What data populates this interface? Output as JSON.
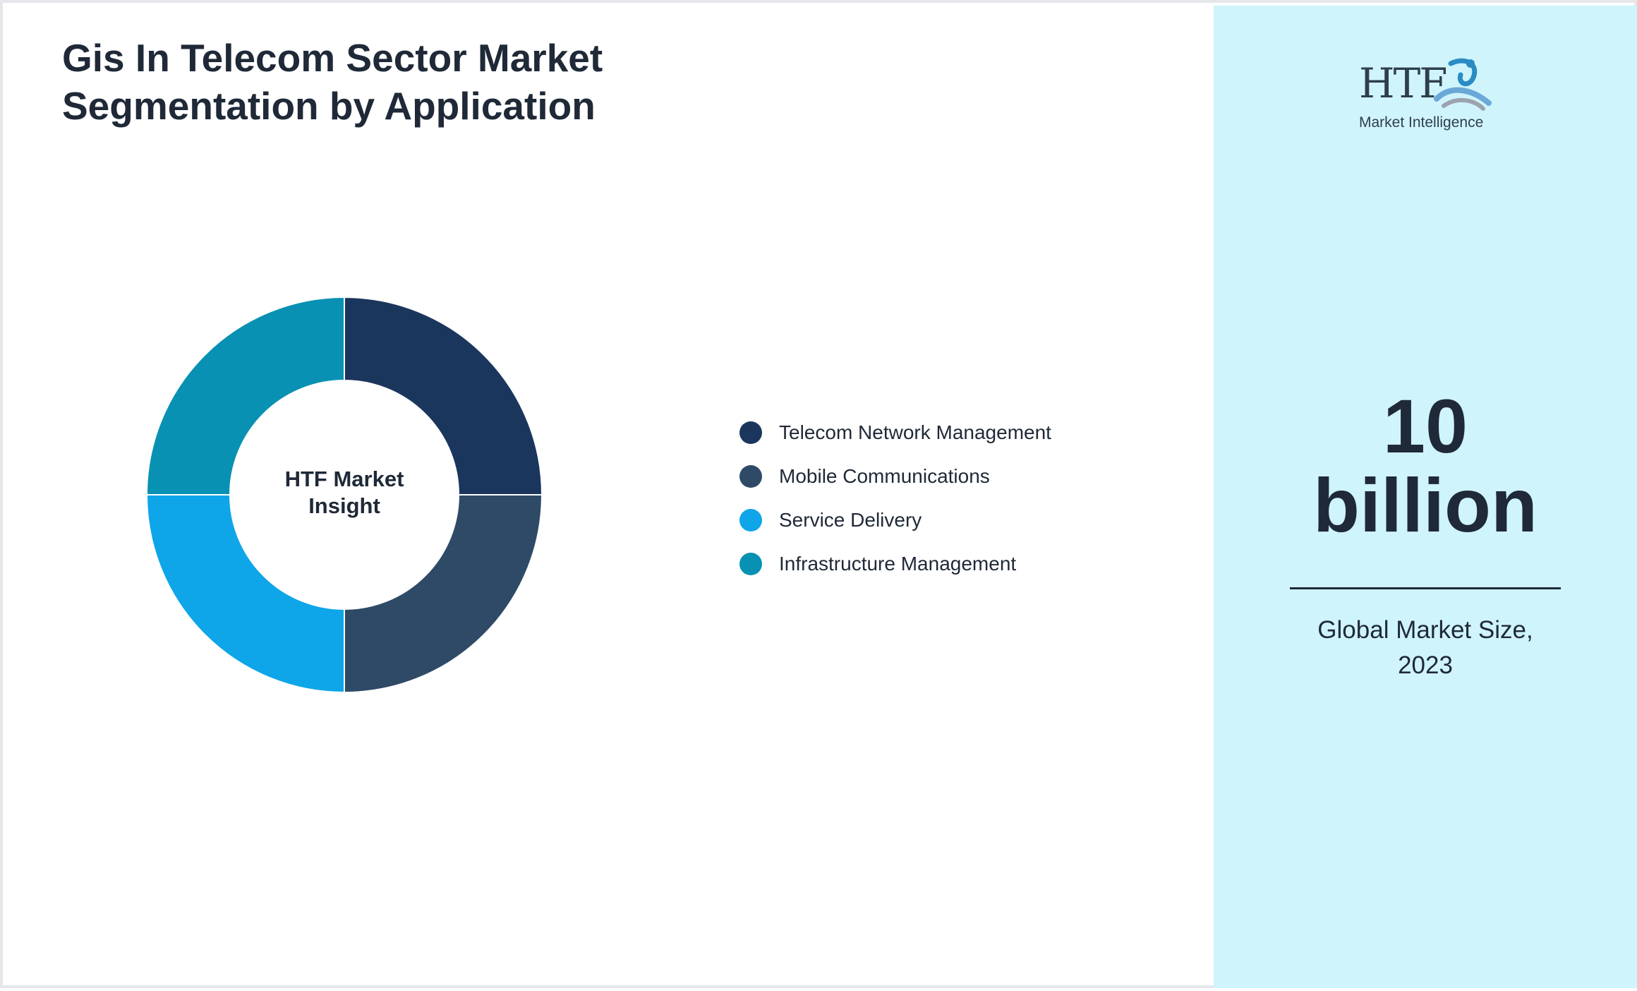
{
  "title": {
    "line1": "Gis In Telecom Sector Market",
    "line2": "Segmentation by Application"
  },
  "chart_data": {
    "type": "pie",
    "style": "donut",
    "title": "Gis In Telecom Sector Market Segmentation by Application",
    "center_label": [
      "HTF Market",
      "Insight"
    ],
    "categories": [
      "Telecom Network Management",
      "Mobile Communications",
      "Service Delivery",
      "Infrastructure Management"
    ],
    "values": [
      25,
      25,
      25,
      25
    ],
    "colors": [
      "#1b365d",
      "#2e4a67",
      "#0ea5e9",
      "#0891b2"
    ],
    "legend_position": "right"
  },
  "side_panel": {
    "logo": {
      "text": "HTF",
      "subtitle": "Market Intelligence"
    },
    "market_value": {
      "line1": "10",
      "line2": "billion"
    },
    "caption": {
      "line1": "Global Market Size,",
      "line2": "2023"
    },
    "background_color": "#cff4fc"
  }
}
